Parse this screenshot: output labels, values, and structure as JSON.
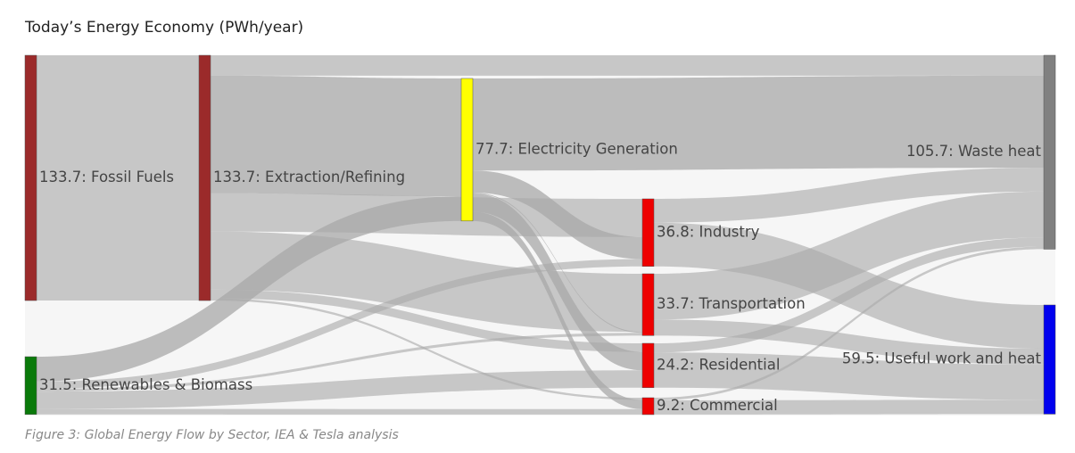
{
  "chart_data": {
    "type": "sankey",
    "title": "Today’s Energy Economy (PWh/year)",
    "caption": "Figure 3: Global Energy Flow by Sector, IEA & Tesla analysis",
    "nodes": [
      {
        "label": "133.7: Fossil Fuels",
        "value": 133.7,
        "color": "#9b2a2a"
      },
      {
        "label": "31.5: Renewables & Biomass",
        "value": 31.5,
        "color": "#0a7a0a"
      },
      {
        "label": "133.7: Extraction/Refining",
        "value": 133.7,
        "color": "#9b2a2a"
      },
      {
        "label": "77.7: Electricity Generation",
        "value": 77.7,
        "color": "#ffff00"
      },
      {
        "label": "36.8: Industry",
        "value": 36.8,
        "color": "#ee0000"
      },
      {
        "label": "33.7: Transportation",
        "value": 33.7,
        "color": "#ee0000"
      },
      {
        "label": "24.2: Residential",
        "value": 24.2,
        "color": "#ee0000"
      },
      {
        "label": "9.2: Commercial",
        "value": 9.2,
        "color": "#ee0000"
      },
      {
        "label": "105.7: Waste heat",
        "value": 105.7,
        "color": "#808080"
      },
      {
        "label": "59.5: Useful work and heat",
        "value": 59.5,
        "color": "#0000ee"
      }
    ],
    "links": [
      {
        "source": 0,
        "target": 2,
        "value": 133.7
      },
      {
        "source": 2,
        "target": 8,
        "value": 11.1
      },
      {
        "source": 2,
        "target": 3,
        "value": 64.2
      },
      {
        "source": 1,
        "target": 3,
        "value": 13.5
      },
      {
        "source": 3,
        "target": 8,
        "value": 50.2
      },
      {
        "source": 2,
        "target": 4,
        "value": 20.8
      },
      {
        "source": 3,
        "target": 4,
        "value": 12
      },
      {
        "source": 1,
        "target": 4,
        "value": 4
      },
      {
        "source": 2,
        "target": 5,
        "value": 31.7
      },
      {
        "source": 3,
        "target": 5,
        "value": 0.5
      },
      {
        "source": 1,
        "target": 5,
        "value": 1.5
      },
      {
        "source": 2,
        "target": 6,
        "value": 4.7
      },
      {
        "source": 3,
        "target": 6,
        "value": 10
      },
      {
        "source": 1,
        "target": 6,
        "value": 9.5
      },
      {
        "source": 2,
        "target": 7,
        "value": 1.2
      },
      {
        "source": 3,
        "target": 7,
        "value": 5
      },
      {
        "source": 1,
        "target": 7,
        "value": 3
      },
      {
        "source": 4,
        "target": 8,
        "value": 13
      },
      {
        "source": 5,
        "target": 8,
        "value": 25
      },
      {
        "source": 6,
        "target": 8,
        "value": 5
      },
      {
        "source": 7,
        "target": 8,
        "value": 1.4
      },
      {
        "source": 4,
        "target": 9,
        "value": 23.8
      },
      {
        "source": 5,
        "target": 9,
        "value": 8.7
      },
      {
        "source": 6,
        "target": 9,
        "value": 19.2
      },
      {
        "source": 7,
        "target": 9,
        "value": 7.8
      }
    ]
  }
}
